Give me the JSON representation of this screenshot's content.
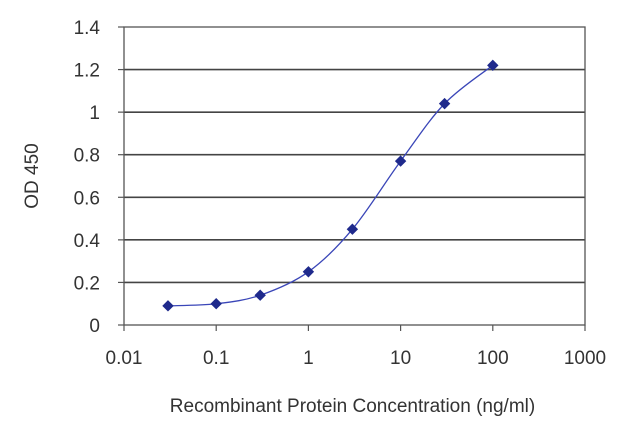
{
  "chart_data": {
    "type": "scatter",
    "xscale": "log",
    "xlabel": "Recombinant Protein Concentration (ng/ml)",
    "ylabel": "OD 450",
    "xlim": [
      0.01,
      1000
    ],
    "ylim": [
      0,
      1.4
    ],
    "x_ticks": [
      0.01,
      0.1,
      1,
      10,
      100,
      1000
    ],
    "x_tick_labels": [
      "0.01",
      "0.1",
      "1",
      "10",
      "100",
      "1000"
    ],
    "y_ticks": [
      0,
      0.2,
      0.4,
      0.6,
      0.8,
      1,
      1.2,
      1.4
    ],
    "y_tick_labels": [
      "0",
      "0.2",
      "0.4",
      "0.6",
      "0.8",
      "1",
      "1.2",
      "1.4"
    ],
    "grid": "horizontal",
    "legend": "none",
    "series": [
      {
        "x": [
          0.03,
          0.1,
          0.3,
          1,
          3,
          10,
          30,
          100
        ],
        "y": [
          0.09,
          0.1,
          0.14,
          0.25,
          0.45,
          0.77,
          1.04,
          1.22
        ],
        "marker": "diamond",
        "color": "#1f2a8c",
        "line": "smooth-fit"
      }
    ]
  }
}
